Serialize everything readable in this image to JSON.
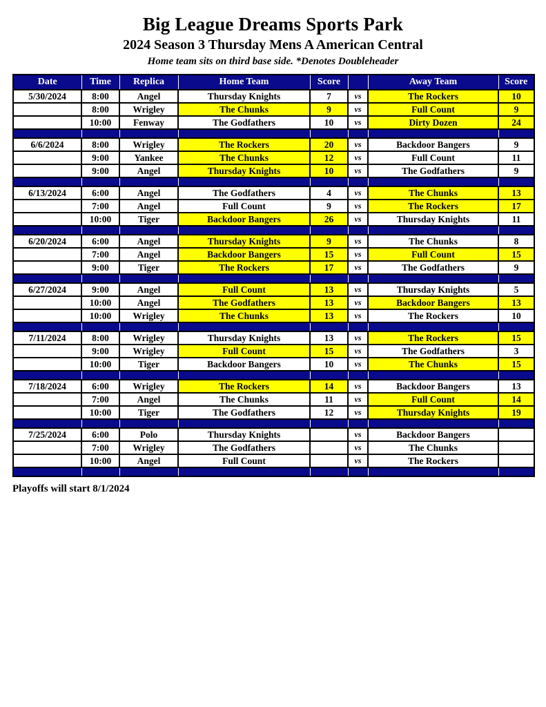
{
  "page": {
    "title": "Big League Dreams Sports Park",
    "subtitle": "2024 Season 3 Thursday Mens A American Central",
    "note": "Home team sits on third base side.  *Denotes Doubleheader",
    "footer": "Playoffs will start 8/1/2024"
  },
  "colors": {
    "navy": "#0A0A8C",
    "highlight_yellow": "#FFFF00",
    "header_text": "#FFFFFF"
  },
  "table": {
    "headers": [
      "Date",
      "Time",
      "Replica",
      "Home Team",
      "Score",
      "",
      "Away Team",
      "Score"
    ],
    "vs_label": "vs",
    "groups": [
      {
        "date": "5/30/2024",
        "games": [
          {
            "time": "8:00",
            "replica": "Angel",
            "home": "Thursday Knights",
            "home_score": "7",
            "home_hl": false,
            "away": "The Rockers",
            "away_score": "10",
            "away_hl": true
          },
          {
            "time": "8:00",
            "replica": "Wrigley",
            "home": "The Chunks",
            "home_score": "9",
            "home_hl": true,
            "away": "Full Count",
            "away_score": "9",
            "away_hl": true
          },
          {
            "time": "10:00",
            "replica": "Fenway",
            "home": "The Godfathers",
            "home_score": "10",
            "home_hl": false,
            "away": "Dirty Dozen",
            "away_score": "24",
            "away_hl": true
          }
        ]
      },
      {
        "date": "6/6/2024",
        "games": [
          {
            "time": "8:00",
            "replica": "Wrigley",
            "home": "The Rockers",
            "home_score": "20",
            "home_hl": true,
            "away": "Backdoor Bangers",
            "away_score": "9",
            "away_hl": false
          },
          {
            "time": "9:00",
            "replica": "Yankee",
            "home": "The Chunks",
            "home_score": "12",
            "home_hl": true,
            "away": "Full Count",
            "away_score": "11",
            "away_hl": false
          },
          {
            "time": "9:00",
            "replica": "Angel",
            "home": "Thursday Knights",
            "home_score": "10",
            "home_hl": true,
            "away": "The Godfathers",
            "away_score": "9",
            "away_hl": false
          }
        ]
      },
      {
        "date": "6/13/2024",
        "games": [
          {
            "time": "6:00",
            "replica": "Angel",
            "home": "The Godfathers",
            "home_score": "4",
            "home_hl": false,
            "away": "The Chunks",
            "away_score": "13",
            "away_hl": true
          },
          {
            "time": "7:00",
            "replica": "Angel",
            "home": "Full Count",
            "home_score": "9",
            "home_hl": false,
            "away": "The Rockers",
            "away_score": "17",
            "away_hl": true
          },
          {
            "time": "10:00",
            "replica": "Tiger",
            "home": "Backdoor Bangers",
            "home_score": "26",
            "home_hl": true,
            "away": "Thursday Knights",
            "away_score": "11",
            "away_hl": false
          }
        ]
      },
      {
        "date": "6/20/2024",
        "games": [
          {
            "time": "6:00",
            "replica": "Angel",
            "home": "Thursday Knights",
            "home_score": "9",
            "home_hl": true,
            "away": "The Chunks",
            "away_score": "8",
            "away_hl": false
          },
          {
            "time": "7:00",
            "replica": "Angel",
            "home": "Backdoor Bangers",
            "home_score": "15",
            "home_hl": true,
            "away": "Full Count",
            "away_score": "15",
            "away_hl": true
          },
          {
            "time": "9:00",
            "replica": "Tiger",
            "home": "The Rockers",
            "home_score": "17",
            "home_hl": true,
            "away": "The Godfathers",
            "away_score": "9",
            "away_hl": false
          }
        ]
      },
      {
        "date": "6/27/2024",
        "games": [
          {
            "time": "9:00",
            "replica": "Angel",
            "home": "Full Count",
            "home_score": "13",
            "home_hl": true,
            "away": "Thursday Knights",
            "away_score": "5",
            "away_hl": false
          },
          {
            "time": "10:00",
            "replica": "Angel",
            "home": "The Godfathers",
            "home_score": "13",
            "home_hl": true,
            "away": "Backdoor Bangers",
            "away_score": "13",
            "away_hl": true
          },
          {
            "time": "10:00",
            "replica": "Wrigley",
            "home": "The Chunks",
            "home_score": "13",
            "home_hl": true,
            "away": "The Rockers",
            "away_score": "10",
            "away_hl": false
          }
        ]
      },
      {
        "date": "7/11/2024",
        "games": [
          {
            "time": "8:00",
            "replica": "Wrigley",
            "home": "Thursday Knights",
            "home_score": "13",
            "home_hl": false,
            "away": "The Rockers",
            "away_score": "15",
            "away_hl": true
          },
          {
            "time": "9:00",
            "replica": "Wrigley",
            "home": "Full Count",
            "home_score": "15",
            "home_hl": true,
            "away": "The Godfathers",
            "away_score": "3",
            "away_hl": false
          },
          {
            "time": "10:00",
            "replica": "Tiger",
            "home": "Backdoor Bangers",
            "home_score": "10",
            "home_hl": false,
            "away": "The Chunks",
            "away_score": "15",
            "away_hl": true
          }
        ]
      },
      {
        "date": "7/18/2024",
        "games": [
          {
            "time": "6:00",
            "replica": "Wrigley",
            "home": "The Rockers",
            "home_score": "14",
            "home_hl": true,
            "away": "Backdoor Bangers",
            "away_score": "13",
            "away_hl": false
          },
          {
            "time": "7:00",
            "replica": "Angel",
            "home": "The Chunks",
            "home_score": "11",
            "home_hl": false,
            "away": "Full Count",
            "away_score": "14",
            "away_hl": true
          },
          {
            "time": "10:00",
            "replica": "Tiger",
            "home": "The Godfathers",
            "home_score": "12",
            "home_hl": false,
            "away": "Thursday Knights",
            "away_score": "19",
            "away_hl": true
          }
        ]
      },
      {
        "date": "7/25/2024",
        "games": [
          {
            "time": "6:00",
            "replica": "Polo",
            "home": "Thursday Knights",
            "home_score": "",
            "home_hl": false,
            "away": "Backdoor Bangers",
            "away_score": "",
            "away_hl": false
          },
          {
            "time": "7:00",
            "replica": "Wrigley",
            "home": "The Godfathers",
            "home_score": "",
            "home_hl": false,
            "away": "The Chunks",
            "away_score": "",
            "away_hl": false
          },
          {
            "time": "10:00",
            "replica": "Angel",
            "home": "Full Count",
            "home_score": "",
            "home_hl": false,
            "away": "The Rockers",
            "away_score": "",
            "away_hl": false
          }
        ]
      }
    ]
  }
}
